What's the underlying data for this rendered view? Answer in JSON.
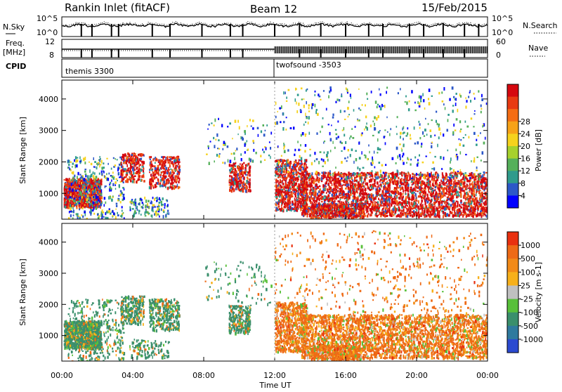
{
  "header": {
    "station": "Rankin Inlet (fitACF)",
    "beam": "Beam 12",
    "date": "15/Feb/2015"
  },
  "strip": {
    "nsky_label": "N.Sky",
    "nsky_ticks": [
      "10^5",
      "10^0"
    ],
    "nsearch_label": "N.Search",
    "nsearch_ticks": [
      "10^5",
      "10^0"
    ],
    "freq_label_1": "Freq.",
    "freq_label_2": "[MHz]",
    "freq_ticks": [
      "12",
      "8"
    ],
    "nave_label": "Nave",
    "nave_ticks": [
      "60",
      "0"
    ],
    "cpid_label": "CPID",
    "cpid_left": "themis 3300",
    "cpid_right": "twofsound -3503",
    "cpid_switch_hour": 12
  },
  "chart_data": [
    {
      "type": "heatmap",
      "name": "power",
      "ylabel": "Slant Range [km]",
      "xlabel": "Time UT",
      "x_ticks": [
        "00:00",
        "04:00",
        "08:00",
        "12:00",
        "16:00",
        "20:00",
        "00:00"
      ],
      "x_range_hours": [
        0,
        24
      ],
      "y_range_km": [
        180,
        4600
      ],
      "y_ticks": [
        1000,
        2000,
        3000,
        4000
      ],
      "colorbar": {
        "label": "Power [dB]",
        "ticks": [
          4,
          8,
          12,
          16,
          20,
          24,
          28
        ],
        "colors": [
          "#0000ff",
          "#2c58c8",
          "#2f9b8c",
          "#55b05a",
          "#a6d12d",
          "#f6d21d",
          "#f7a218",
          "#f46d14",
          "#e83a12",
          "#d5080f"
        ]
      }
    },
    {
      "type": "heatmap",
      "name": "velocity",
      "ylabel": "Slant Range [km]",
      "xlabel": "Time UT",
      "x_ticks": [
        "00:00",
        "04:00",
        "08:00",
        "12:00",
        "16:00",
        "20:00",
        "00:00"
      ],
      "x_range_hours": [
        0,
        24
      ],
      "y_range_km": [
        180,
        4600
      ],
      "y_ticks": [
        1000,
        2000,
        3000,
        4000
      ],
      "colorbar": {
        "label": "Velocity [m s-1]",
        "ticks": [
          "1000",
          "500",
          "100",
          "25",
          "-25",
          "-100",
          "-500",
          "-1000"
        ],
        "colors": [
          "#2b4ad0",
          "#2f7a9e",
          "#3a8f6c",
          "#58c03a",
          "#c0c0c0",
          "#f7b01a",
          "#f28a18",
          "#ee6a16",
          "#e9300f"
        ]
      }
    }
  ]
}
